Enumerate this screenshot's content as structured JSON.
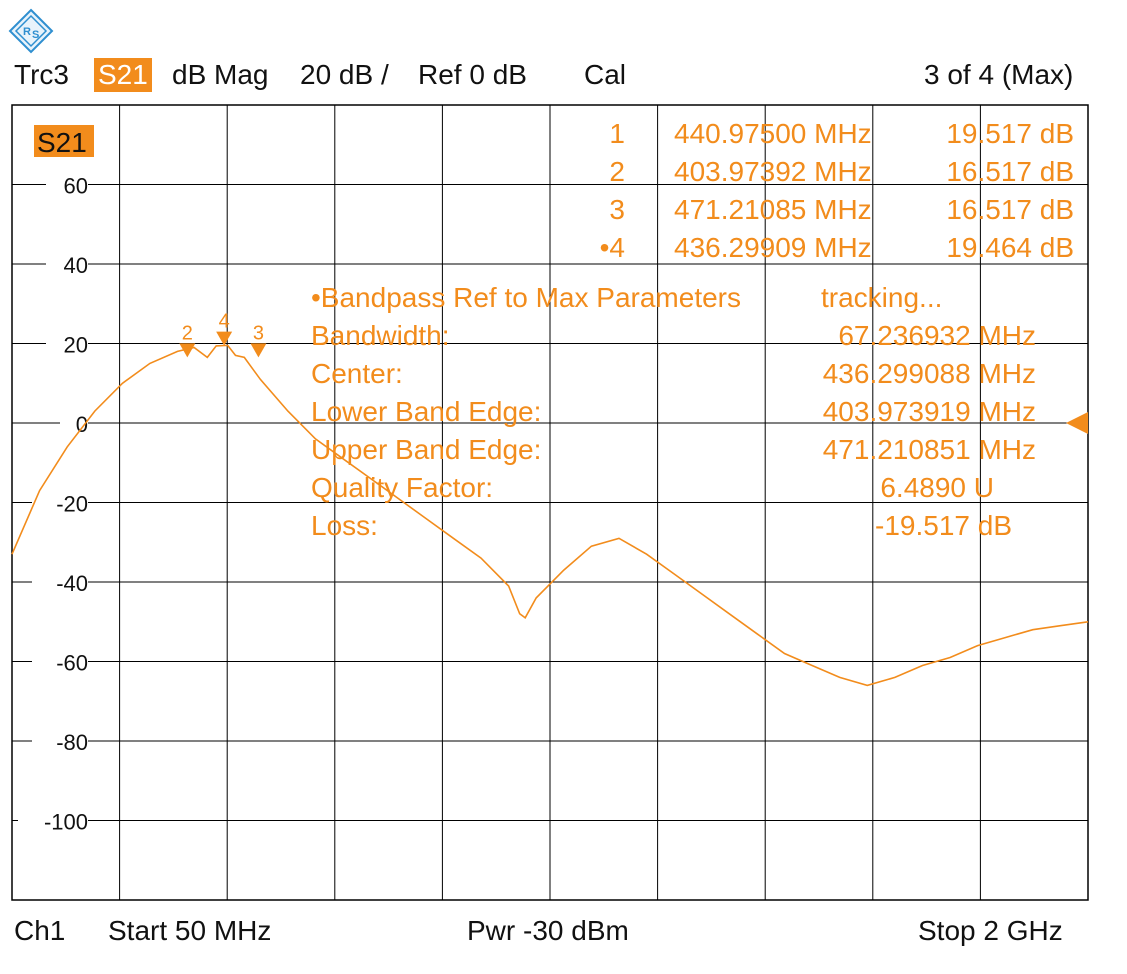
{
  "header": {
    "trace": "Trc3",
    "param": "S21",
    "format": "dB Mag",
    "scale": "20 dB /",
    "ref": "Ref 0 dB",
    "cal": "Cal",
    "marker_count": "3 of 4 (Max)"
  },
  "footer": {
    "channel": "Ch1",
    "start": "Start  50 MHz",
    "power": "Pwr  -30 dBm",
    "stop": "Stop  2 GHz"
  },
  "colors": {
    "trace": "#f28c1c",
    "grid": "#000000",
    "badge": "#f28c1c"
  },
  "icons": {
    "logo": "rohde-schwarz-logo-icon",
    "ref_marker": "ref-level-arrow-icon"
  },
  "markers": [
    {
      "id": "1",
      "freq": "440.97500 MHz",
      "value": "19.517 dB"
    },
    {
      "id": "2",
      "freq": "403.97392 MHz",
      "value": "16.517 dB"
    },
    {
      "id": "3",
      "freq": "471.21085 MHz",
      "value": "16.517 dB"
    },
    {
      "id": "•4",
      "freq": "436.29909 MHz",
      "value": "19.464 dB"
    }
  ],
  "bandpass": {
    "title": "•Bandpass Ref to Max Parameters",
    "status": "tracking...",
    "rows": [
      {
        "label": "Bandwidth:",
        "value": "67.236932 MHz"
      },
      {
        "label": "Center:",
        "value": "436.299088 MHz"
      },
      {
        "label": "Lower Band Edge:",
        "value": "403.973919 MHz"
      },
      {
        "label": "Upper Band Edge:",
        "value": "471.210851 MHz"
      },
      {
        "label": "Quality Factor:",
        "value": "6.4890 U"
      },
      {
        "label": "Loss:",
        "value": "-19.517 dB"
      }
    ]
  },
  "chart_data": {
    "type": "line",
    "trace_label": "S21",
    "xlabel": "",
    "ylabel": "",
    "xlim": [
      50,
      2000
    ],
    "ylim": [
      -120,
      80
    ],
    "yticks": [
      60,
      40,
      20,
      0,
      -20,
      -40,
      -60,
      -80,
      -100
    ],
    "grid": true,
    "series": [
      {
        "name": "S21",
        "x": [
          50,
          100,
          150,
          200,
          250,
          300,
          350,
          380,
          404,
          420,
          436,
          441,
          455,
          471,
          500,
          550,
          600,
          650,
          700,
          750,
          800,
          850,
          900,
          950,
          970,
          980,
          1000,
          1050,
          1100,
          1150,
          1200,
          1250,
          1300,
          1350,
          1400,
          1450,
          1500,
          1550,
          1600,
          1650,
          1700,
          1750,
          1800,
          1850,
          1900,
          1950,
          2000
        ],
        "y": [
          -33,
          -17,
          -6,
          3,
          10,
          15,
          18,
          19,
          16.5,
          19.4,
          19.5,
          19.5,
          17,
          16.5,
          11,
          3,
          -4,
          -9,
          -14,
          -19,
          -24,
          -29,
          -34,
          -41,
          -48,
          -49,
          -44,
          -37,
          -31,
          -29,
          -33,
          -38,
          -43,
          -48,
          -53,
          -58,
          -61,
          -64,
          -66,
          -64,
          -61,
          -59,
          -56,
          -54,
          -52,
          -51,
          -50
        ]
      }
    ],
    "markers": [
      {
        "label": "1",
        "x": 440.975,
        "y": 19.517
      },
      {
        "label": "2",
        "x": 403.97392,
        "y": 16.517
      },
      {
        "label": "3",
        "x": 471.21085,
        "y": 16.517
      },
      {
        "label": "4",
        "x": 436.29909,
        "y": 19.464
      }
    ]
  }
}
